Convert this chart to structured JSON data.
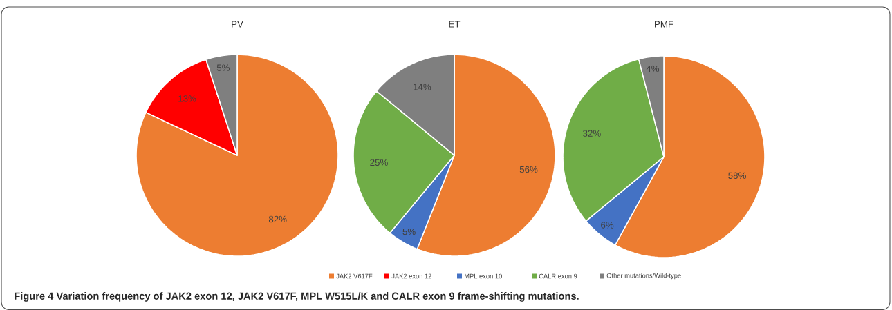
{
  "chart_data": [
    {
      "type": "pie",
      "title": "PV",
      "categories": [
        "JAK2 V617F",
        "JAK2 exon 12",
        "MPL exon 10",
        "CALR exon 9",
        "Other mutations/Wild-type"
      ],
      "values": [
        82,
        13,
        null,
        null,
        5
      ],
      "value_labels": [
        "82%",
        "13%",
        null,
        null,
        "5%"
      ],
      "colors": [
        "#ed7d31",
        "#ff0000",
        "#4472c4",
        "#70ad47",
        "#7f7f7f"
      ],
      "legend": "bottom",
      "annotations": [
        "**Figure 4** **Variation frequency of JAK2 exon 12, JAK2 V617F, MPL W515L/K and CALR exon 9 frame-shifting mutations.**"
      ]
    },
    {
      "type": "pie",
      "title": "ET",
      "values": [
        56,
        null,
        5,
        25,
        14
      ],
      "value_labels": [
        "56%",
        null,
        "5%",
        "25%",
        "14%"
      ],
      "colors": [
        "#ed7d31",
        "#ff0000",
        "#4472c4",
        "#70ad47",
        "#7f7f7f"
      ]
    },
    {
      "type": "pie",
      "title": "PMF",
      "values": [
        58,
        null,
        6,
        32,
        4
      ],
      "value_labels": [
        "58%",
        null,
        "6%",
        "32%",
        "4%"
      ],
      "colors": [
        "#ed7d31",
        "#ff0000",
        "#4472c4",
        "#70ad47",
        "#7f7f7f"
      ]
    }
  ]
}
